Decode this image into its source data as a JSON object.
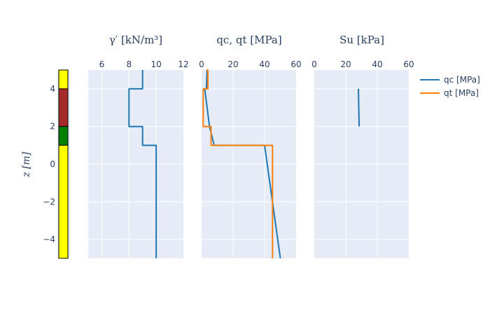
{
  "chart_data": {
    "type": "line",
    "ylabel": "z [m]",
    "ylim": [
      -5,
      5
    ],
    "yticks": [
      "4",
      "2",
      "0",
      "−2",
      "−4"
    ],
    "strata": [
      {
        "top": 5,
        "bottom": 4,
        "color": "#ffff00"
      },
      {
        "top": 4,
        "bottom": 2,
        "color": "#a52a2a"
      },
      {
        "top": 2,
        "bottom": 1,
        "color": "#008000"
      },
      {
        "top": 1,
        "bottom": -5,
        "color": "#ffff00"
      }
    ],
    "panels": [
      {
        "title": "γ′  [kN/m³]",
        "xlim": [
          5,
          12
        ],
        "xticks": [
          "6",
          "8",
          "10",
          "12"
        ],
        "xtick_values": [
          6,
          8,
          10,
          12
        ],
        "series": [
          {
            "color": "#1f77b4",
            "x": [
              9,
              9,
              8,
              8,
              9,
              9,
              10,
              10
            ],
            "y": [
              5,
              4,
              4,
              2,
              2,
              1,
              1,
              -5
            ]
          }
        ]
      },
      {
        "title": "qc,  qt  [MPa]",
        "xlim": [
          0,
          60
        ],
        "xticks": [
          "0",
          "20",
          "40",
          "60"
        ],
        "xtick_values": [
          0,
          20,
          40,
          60
        ],
        "series": [
          {
            "name": "qc [MPa]",
            "color": "#1f77b4",
            "x": [
              3.5,
              3,
              2,
              5,
              8,
              40,
              50
            ],
            "y": [
              5,
              4,
              4,
              2,
              1,
              1,
              -5
            ]
          },
          {
            "name": "qt [MPa]",
            "color": "#ff7f0e",
            "x": [
              3,
              4,
              4,
              1,
              1,
              6,
              6,
              7,
              45,
              45
            ],
            "y": [
              5,
              5,
              4,
              4,
              2,
              2,
              1,
              1,
              1,
              -5
            ]
          }
        ]
      },
      {
        "title": "Su  [kPa]",
        "xlim": [
          0,
          60
        ],
        "xticks": [
          "0",
          "20",
          "40",
          "60"
        ],
        "xtick_values": [
          0,
          20,
          40,
          60
        ],
        "series": [
          {
            "color": "#1f77b4",
            "x": [
              28,
              28.5
            ],
            "y": [
              4,
              2
            ]
          }
        ]
      }
    ],
    "legend": [
      {
        "name": "qc [MPa]",
        "color": "#1f77b4"
      },
      {
        "name": "qt [MPa]",
        "color": "#ff7f0e"
      }
    ]
  }
}
